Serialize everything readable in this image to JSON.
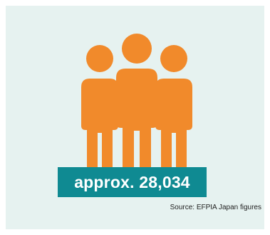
{
  "infographic": {
    "count_label": "approx. 28,034",
    "source": "Source: EFPIA Japan figures",
    "icon": "people-group-icon"
  },
  "colors": {
    "background": "#e6f2f0",
    "icon": "#f18a2b",
    "badge": "#0f8a92",
    "badge_text": "#ffffff"
  }
}
